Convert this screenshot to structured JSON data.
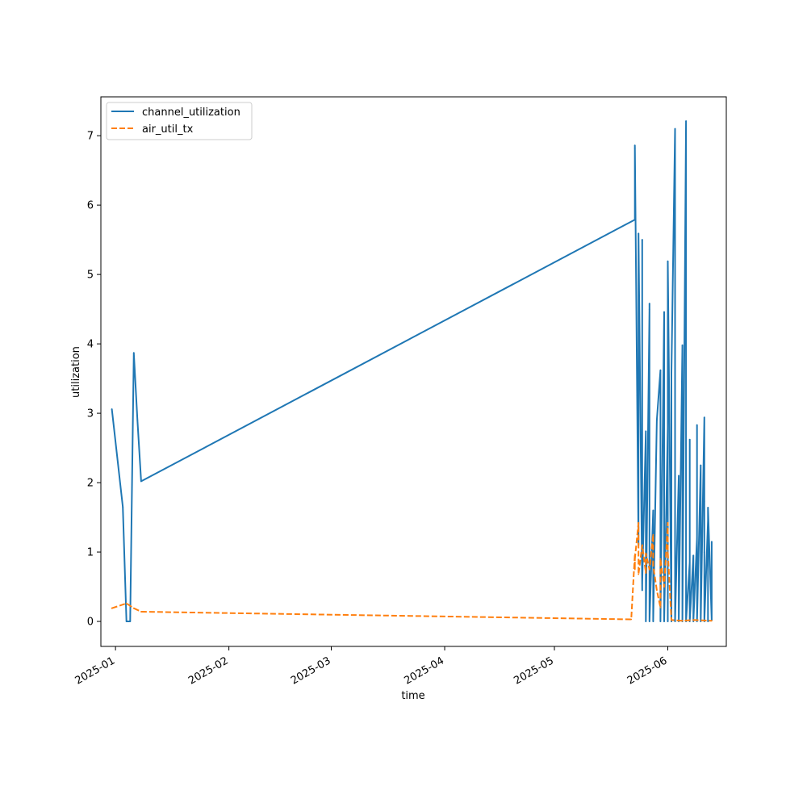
{
  "chart_data": {
    "type": "line",
    "title": "",
    "xlabel": "time",
    "ylabel": "utilization",
    "x_type": "date",
    "xlim": [
      "2024-12-28",
      "2025-06-17"
    ],
    "ylim": [
      -0.36,
      7.56
    ],
    "x_ticks": [
      "2025-01",
      "2025-02",
      "2025-03",
      "2025-04",
      "2025-05",
      "2025-06"
    ],
    "y_ticks": [
      "0",
      "1",
      "2",
      "3",
      "4",
      "5",
      "6",
      "7"
    ],
    "grid": false,
    "legend_position": "upper-left",
    "series": [
      {
        "name": "channel_utilization",
        "color": "#1f77b4",
        "line_style": "solid",
        "points": [
          [
            "2024-12-31",
            3.06
          ],
          [
            "2025-01-03",
            1.65
          ],
          [
            "2025-01-04",
            0.0
          ],
          [
            "2025-01-05",
            0.0
          ],
          [
            "2025-01-06",
            3.87
          ],
          [
            "2025-01-07",
            2.9
          ],
          [
            "2025-01-08",
            2.02
          ],
          [
            "2025-05-23",
            5.79
          ],
          [
            "2025-05-23",
            6.82
          ],
          [
            "2025-05-23",
            6.86
          ],
          [
            "2025-05-24",
            1.1
          ],
          [
            "2025-05-24",
            5.59
          ],
          [
            "2025-05-25",
            0.45
          ],
          [
            "2025-05-25",
            5.5
          ],
          [
            "2025-05-25",
            0.55
          ],
          [
            "2025-05-26",
            2.74
          ],
          [
            "2025-05-26",
            0.0
          ],
          [
            "2025-05-27",
            4.5
          ],
          [
            "2025-05-27",
            4.58
          ],
          [
            "2025-05-27",
            0.0
          ],
          [
            "2025-05-28",
            1.6
          ],
          [
            "2025-05-28",
            0.0
          ],
          [
            "2025-05-29",
            2.9
          ],
          [
            "2025-05-30",
            3.62
          ],
          [
            "2025-05-30",
            0.0
          ],
          [
            "2025-05-31",
            4.46
          ],
          [
            "2025-05-31",
            0.0
          ],
          [
            "2025-06-01",
            2.8
          ],
          [
            "2025-06-01",
            0.0
          ],
          [
            "2025-06-01",
            5.19
          ],
          [
            "2025-06-02",
            0.0
          ],
          [
            "2025-06-02",
            3.58
          ],
          [
            "2025-06-03",
            7.1
          ],
          [
            "2025-06-03",
            0.0
          ],
          [
            "2025-06-04",
            2.1
          ],
          [
            "2025-06-04",
            0.0
          ],
          [
            "2025-06-05",
            3.98
          ],
          [
            "2025-06-05",
            0.0
          ],
          [
            "2025-06-06",
            7.21
          ],
          [
            "2025-06-06",
            0.0
          ],
          [
            "2025-06-07",
            0.85
          ],
          [
            "2025-06-07",
            2.62
          ],
          [
            "2025-06-07",
            0.0
          ],
          [
            "2025-06-08",
            0.95
          ],
          [
            "2025-06-08",
            0.0
          ],
          [
            "2025-06-09",
            1.2
          ],
          [
            "2025-06-09",
            2.83
          ],
          [
            "2025-06-09",
            0.0
          ],
          [
            "2025-06-10",
            2.25
          ],
          [
            "2025-06-10",
            0.0
          ],
          [
            "2025-06-11",
            2.94
          ],
          [
            "2025-06-11",
            1.0
          ],
          [
            "2025-06-11",
            1.73
          ],
          [
            "2025-06-11",
            0.0
          ],
          [
            "2025-06-12",
            1.45
          ],
          [
            "2025-06-12",
            0.0
          ],
          [
            "2025-06-12",
            1.64
          ],
          [
            "2025-06-13",
            0.02
          ],
          [
            "2025-06-13",
            1.15
          ]
        ]
      },
      {
        "name": "air_util_tx",
        "color": "#ff7f0e",
        "line_style": "dashed",
        "points": [
          [
            "2024-12-31",
            0.19
          ],
          [
            "2025-01-04",
            0.26
          ],
          [
            "2025-01-06",
            0.19
          ],
          [
            "2025-01-08",
            0.14
          ],
          [
            "2025-05-22",
            0.03
          ],
          [
            "2025-05-23",
            0.97
          ],
          [
            "2025-05-23",
            0.75
          ],
          [
            "2025-05-23",
            0.9
          ],
          [
            "2025-05-24",
            1.42
          ],
          [
            "2025-05-24",
            0.68
          ],
          [
            "2025-05-25",
            1.1
          ],
          [
            "2025-05-26",
            0.7
          ],
          [
            "2025-05-26",
            0.98
          ],
          [
            "2025-05-27",
            0.75
          ],
          [
            "2025-05-28",
            1.25
          ],
          [
            "2025-05-28",
            0.8
          ],
          [
            "2025-05-29",
            0.45
          ],
          [
            "2025-05-30",
            0.2
          ],
          [
            "2025-05-30",
            0.9
          ],
          [
            "2025-05-31",
            0.5
          ],
          [
            "2025-06-01",
            1.42
          ],
          [
            "2025-06-01",
            1.0
          ],
          [
            "2025-06-02",
            0.02
          ],
          [
            "2025-06-05",
            0.01
          ],
          [
            "2025-06-08",
            0.02
          ],
          [
            "2025-06-13",
            0.01
          ]
        ]
      }
    ]
  }
}
